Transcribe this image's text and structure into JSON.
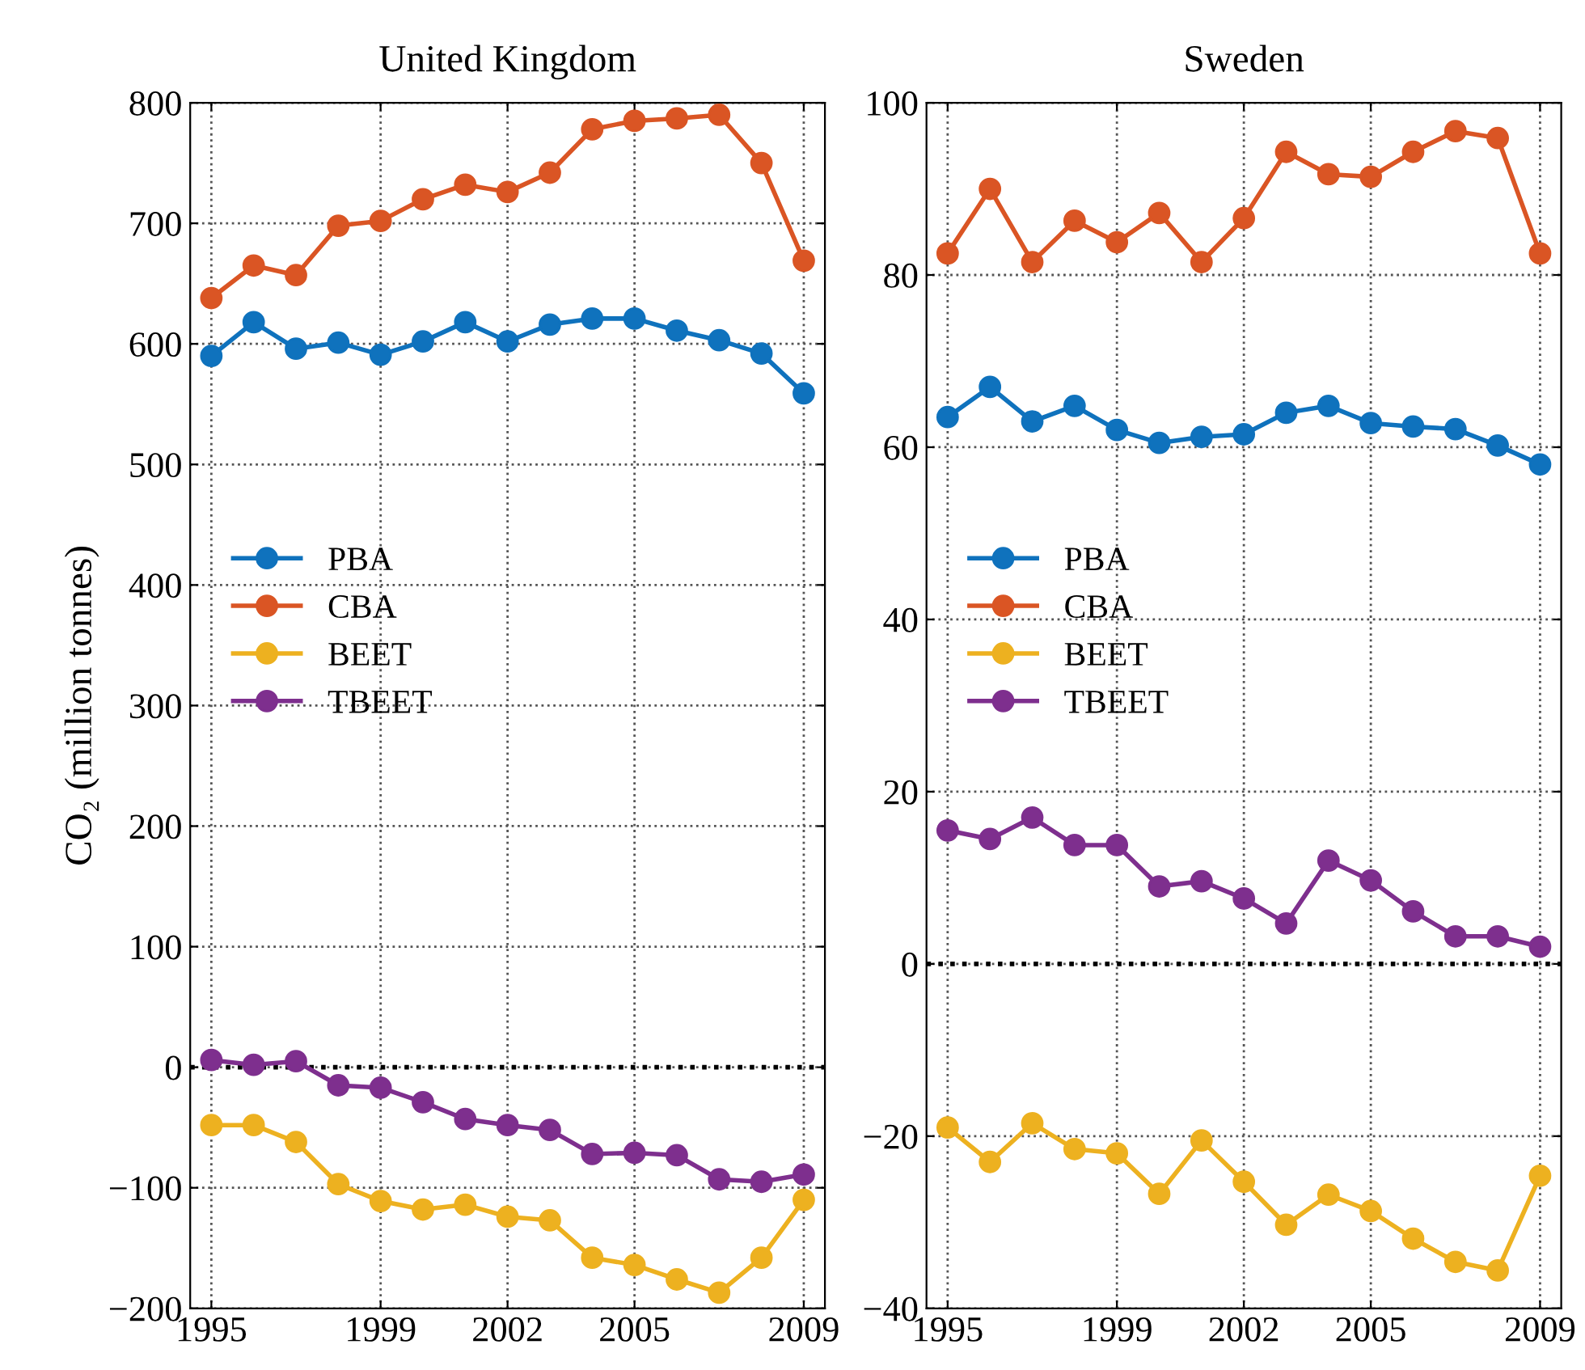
{
  "chart_data": [
    {
      "type": "line",
      "title": "United Kingdom",
      "ylabel": "CO₂ (million tonnes)",
      "x": [
        1995,
        1996,
        1997,
        1998,
        1999,
        2000,
        2001,
        2002,
        2003,
        2004,
        2005,
        2006,
        2007,
        2008,
        2009
      ],
      "xlim": [
        1994.5,
        2009.5
      ],
      "xticks": [
        1995,
        1999,
        2002,
        2005,
        2009
      ],
      "ylim": [
        -200,
        800
      ],
      "yticks": [
        -200,
        -100,
        0,
        100,
        200,
        300,
        400,
        500,
        600,
        700,
        800
      ],
      "grid": true,
      "legend": "left",
      "marker": "circle",
      "line_style": "solid",
      "ref_lines": [
        {
          "axis": "y",
          "value": 0,
          "color": "#000000",
          "line_style": "dotted"
        }
      ],
      "series": [
        {
          "name": "PBA",
          "color": "#0f72bd",
          "values": [
            590,
            618,
            596,
            601,
            591,
            602,
            618,
            602,
            616,
            621,
            621,
            611,
            603,
            592,
            559
          ]
        },
        {
          "name": "CBA",
          "color": "#da5524",
          "values": [
            638,
            665,
            657,
            698,
            702,
            720,
            732,
            726,
            742,
            778,
            785,
            787,
            790,
            750,
            669
          ]
        },
        {
          "name": "BEET",
          "color": "#edb120",
          "values": [
            -48,
            -48,
            -62,
            -97,
            -111,
            -118,
            -114,
            -124,
            -127,
            -158,
            -164,
            -176,
            -187,
            -158,
            -110
          ]
        },
        {
          "name": "TBEET",
          "color": "#7e2f8e",
          "values": [
            6,
            2,
            5,
            -15,
            -17,
            -29,
            -43,
            -48,
            -52,
            -72,
            -71,
            -73,
            -93,
            -95,
            -89
          ]
        }
      ]
    },
    {
      "type": "line",
      "title": "Sweden",
      "x": [
        1995,
        1996,
        1997,
        1998,
        1999,
        2000,
        2001,
        2002,
        2003,
        2004,
        2005,
        2006,
        2007,
        2008,
        2009
      ],
      "xlim": [
        1994.5,
        2009.5
      ],
      "xticks": [
        1995,
        1999,
        2002,
        2005,
        2009
      ],
      "ylim": [
        -40,
        100
      ],
      "yticks": [
        -40,
        -20,
        0,
        20,
        40,
        60,
        80,
        100
      ],
      "grid": true,
      "legend": "left",
      "marker": "circle",
      "line_style": "solid",
      "ref_lines": [
        {
          "axis": "y",
          "value": 0,
          "color": "#000000",
          "line_style": "dotted"
        }
      ],
      "series": [
        {
          "name": "PBA",
          "color": "#0f72bd",
          "values": [
            63.5,
            67,
            63,
            64.8,
            62,
            60.5,
            61.2,
            61.5,
            64,
            64.8,
            62.8,
            62.4,
            62.1,
            60.2,
            58
          ]
        },
        {
          "name": "CBA",
          "color": "#da5524",
          "values": [
            82.5,
            90,
            81.5,
            86.3,
            83.8,
            87.2,
            81.5,
            86.6,
            94.3,
            91.7,
            91.4,
            94.3,
            96.7,
            95.9,
            82.5
          ]
        },
        {
          "name": "BEET",
          "color": "#edb120",
          "values": [
            -19,
            -23,
            -18.5,
            -21.5,
            -22,
            -26.7,
            -20.5,
            -25.3,
            -30.3,
            -26.8,
            -28.7,
            -31.9,
            -34.6,
            -35.6,
            -24.6
          ]
        },
        {
          "name": "TBEET",
          "color": "#7e2f8e",
          "values": [
            15.5,
            14.5,
            17,
            13.8,
            13.8,
            9,
            9.6,
            7.6,
            4.7,
            12,
            9.7,
            6.1,
            3.2,
            3.2,
            2
          ]
        }
      ]
    }
  ]
}
